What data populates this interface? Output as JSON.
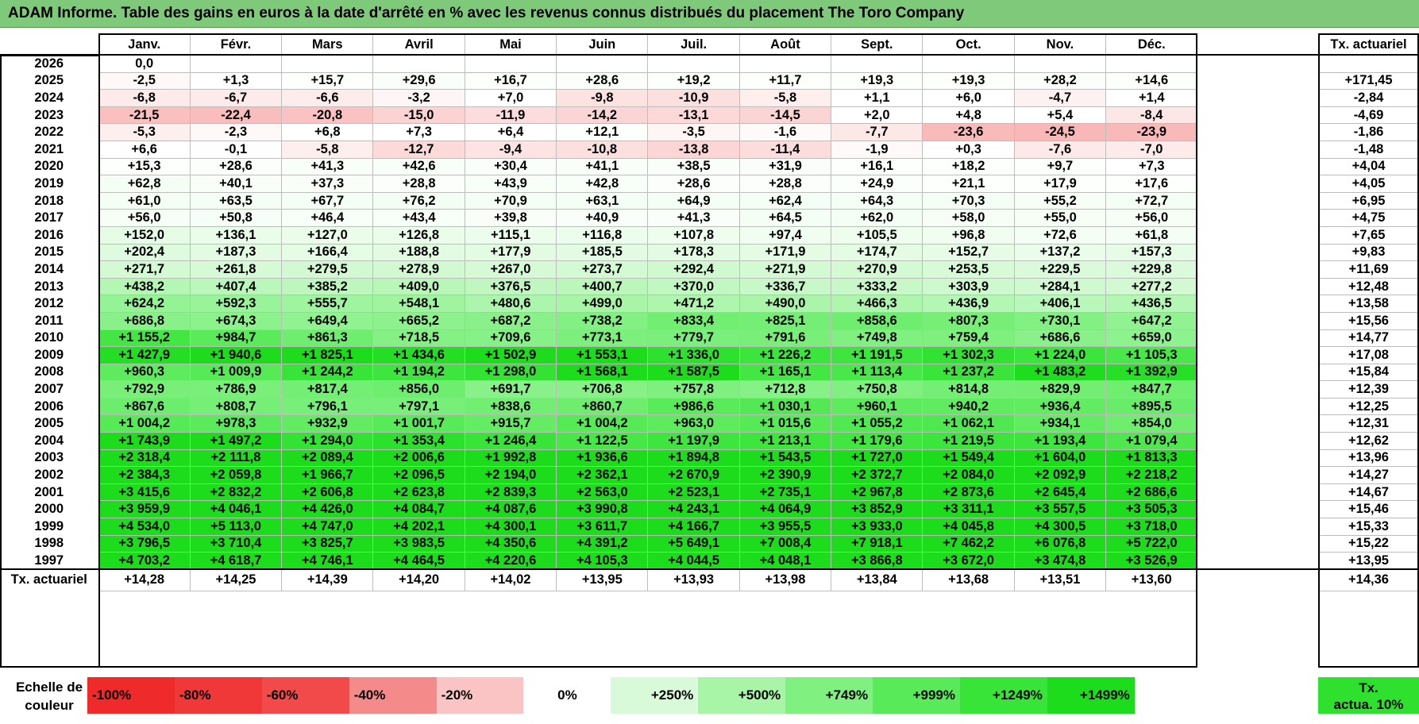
{
  "title": "ADAM Informe. Table des gains en euros à la date d'arrêté en % avec les revenus connus distribués du placement The Toro Company",
  "chart_data": {
    "type": "heatmap",
    "title": "ADAM Informe. Table des gains en euros à la date d'arrêté en % avec les revenus connus distribués du placement The Toro Company",
    "columns": [
      "Janv.",
      "Févr.",
      "Mars",
      "Avril",
      "Mai",
      "Juin",
      "Juil.",
      "Août",
      "Sept.",
      "Oct.",
      "Nov.",
      "Déc."
    ],
    "rate_column_header": "Tx. actuariel",
    "rows": [
      {
        "year": "2026",
        "values": [
          "0,0",
          "",
          "",
          "",
          "",
          "",
          "",
          "",
          "",
          "",
          "",
          ""
        ],
        "rate": ""
      },
      {
        "year": "2025",
        "values": [
          "-2,5",
          "+1,3",
          "+15,7",
          "+29,6",
          "+16,7",
          "+28,6",
          "+19,2",
          "+11,7",
          "+19,3",
          "+19,3",
          "+28,2",
          "+14,6"
        ],
        "rate": "+171,45"
      },
      {
        "year": "2024",
        "values": [
          "-6,8",
          "-6,7",
          "-6,6",
          "-3,2",
          "+7,0",
          "-9,8",
          "-10,9",
          "-5,8",
          "+1,1",
          "+6,0",
          "-4,7",
          "+1,4"
        ],
        "rate": "-2,84"
      },
      {
        "year": "2023",
        "values": [
          "-21,5",
          "-22,4",
          "-20,8",
          "-15,0",
          "-11,9",
          "-14,2",
          "-13,1",
          "-14,5",
          "+2,0",
          "+4,8",
          "+5,4",
          "-8,4"
        ],
        "rate": "-4,69"
      },
      {
        "year": "2022",
        "values": [
          "-5,3",
          "-2,3",
          "+6,8",
          "+7,3",
          "+6,4",
          "+12,1",
          "-3,5",
          "-1,6",
          "-7,7",
          "-23,6",
          "-24,5",
          "-23,9"
        ],
        "rate": "-1,86"
      },
      {
        "year": "2021",
        "values": [
          "+6,6",
          "-0,1",
          "-5,8",
          "-12,7",
          "-9,4",
          "-10,8",
          "-13,8",
          "-11,4",
          "-1,9",
          "+0,3",
          "-7,6",
          "-7,0"
        ],
        "rate": "-1,48"
      },
      {
        "year": "2020",
        "values": [
          "+15,3",
          "+28,6",
          "+41,3",
          "+42,6",
          "+30,4",
          "+41,1",
          "+38,5",
          "+31,9",
          "+16,1",
          "+18,2",
          "+9,7",
          "+7,3"
        ],
        "rate": "+4,04"
      },
      {
        "year": "2019",
        "values": [
          "+62,8",
          "+40,1",
          "+37,3",
          "+28,8",
          "+43,9",
          "+42,8",
          "+28,6",
          "+28,8",
          "+24,9",
          "+21,1",
          "+17,9",
          "+17,6"
        ],
        "rate": "+4,05"
      },
      {
        "year": "2018",
        "values": [
          "+61,0",
          "+63,5",
          "+67,7",
          "+76,2",
          "+70,9",
          "+63,1",
          "+64,9",
          "+62,4",
          "+64,3",
          "+70,3",
          "+55,2",
          "+72,7"
        ],
        "rate": "+6,95"
      },
      {
        "year": "2017",
        "values": [
          "+56,0",
          "+50,8",
          "+46,4",
          "+43,4",
          "+39,8",
          "+40,9",
          "+41,3",
          "+64,5",
          "+62,0",
          "+58,0",
          "+55,0",
          "+56,0"
        ],
        "rate": "+4,75"
      },
      {
        "year": "2016",
        "values": [
          "+152,0",
          "+136,1",
          "+127,0",
          "+126,8",
          "+115,1",
          "+116,8",
          "+107,8",
          "+97,4",
          "+105,5",
          "+96,8",
          "+72,6",
          "+61,8"
        ],
        "rate": "+7,65"
      },
      {
        "year": "2015",
        "values": [
          "+202,4",
          "+187,3",
          "+166,4",
          "+188,8",
          "+177,9",
          "+185,5",
          "+178,3",
          "+171,9",
          "+174,7",
          "+152,7",
          "+137,2",
          "+157,3"
        ],
        "rate": "+9,83"
      },
      {
        "year": "2014",
        "values": [
          "+271,7",
          "+261,8",
          "+279,5",
          "+278,9",
          "+267,0",
          "+273,7",
          "+292,4",
          "+271,9",
          "+270,9",
          "+253,5",
          "+229,5",
          "+229,8"
        ],
        "rate": "+11,69"
      },
      {
        "year": "2013",
        "values": [
          "+438,2",
          "+407,4",
          "+385,2",
          "+409,0",
          "+376,5",
          "+400,7",
          "+370,0",
          "+336,7",
          "+333,2",
          "+303,9",
          "+284,1",
          "+277,2"
        ],
        "rate": "+12,48"
      },
      {
        "year": "2012",
        "values": [
          "+624,2",
          "+592,3",
          "+555,7",
          "+548,1",
          "+480,6",
          "+499,0",
          "+471,2",
          "+490,0",
          "+466,3",
          "+436,9",
          "+406,1",
          "+436,5"
        ],
        "rate": "+13,58"
      },
      {
        "year": "2011",
        "values": [
          "+686,8",
          "+674,3",
          "+649,4",
          "+665,2",
          "+687,2",
          "+738,2",
          "+833,4",
          "+825,1",
          "+858,6",
          "+807,3",
          "+730,1",
          "+647,2"
        ],
        "rate": "+15,56"
      },
      {
        "year": "2010",
        "values": [
          "+1 155,2",
          "+984,7",
          "+861,3",
          "+718,5",
          "+709,6",
          "+773,1",
          "+779,7",
          "+791,6",
          "+749,8",
          "+759,4",
          "+686,6",
          "+659,0"
        ],
        "rate": "+14,77"
      },
      {
        "year": "2009",
        "values": [
          "+1 427,9",
          "+1 940,6",
          "+1 825,1",
          "+1 434,6",
          "+1 502,9",
          "+1 553,1",
          "+1 336,0",
          "+1 226,2",
          "+1 191,5",
          "+1 302,3",
          "+1 224,0",
          "+1 105,3"
        ],
        "rate": "+17,08"
      },
      {
        "year": "2008",
        "values": [
          "+960,3",
          "+1 009,9",
          "+1 244,2",
          "+1 194,2",
          "+1 298,0",
          "+1 568,1",
          "+1 587,5",
          "+1 165,1",
          "+1 113,4",
          "+1 237,2",
          "+1 483,2",
          "+1 392,9"
        ],
        "rate": "+15,84"
      },
      {
        "year": "2007",
        "values": [
          "+792,9",
          "+786,9",
          "+817,4",
          "+856,0",
          "+691,7",
          "+706,8",
          "+757,8",
          "+712,8",
          "+750,8",
          "+814,8",
          "+829,9",
          "+847,7"
        ],
        "rate": "+12,39"
      },
      {
        "year": "2006",
        "values": [
          "+867,6",
          "+808,7",
          "+796,1",
          "+797,1",
          "+838,6",
          "+860,7",
          "+986,6",
          "+1 030,1",
          "+960,1",
          "+940,2",
          "+936,4",
          "+895,5"
        ],
        "rate": "+12,25"
      },
      {
        "year": "2005",
        "values": [
          "+1 004,2",
          "+978,3",
          "+932,9",
          "+1 001,7",
          "+915,7",
          "+1 004,2",
          "+963,0",
          "+1 015,6",
          "+1 055,2",
          "+1 062,1",
          "+934,1",
          "+854,0"
        ],
        "rate": "+12,31"
      },
      {
        "year": "2004",
        "values": [
          "+1 743,9",
          "+1 497,2",
          "+1 294,0",
          "+1 353,4",
          "+1 246,4",
          "+1 122,5",
          "+1 197,9",
          "+1 213,1",
          "+1 179,6",
          "+1 219,5",
          "+1 193,4",
          "+1 079,4"
        ],
        "rate": "+12,62"
      },
      {
        "year": "2003",
        "values": [
          "+2 318,4",
          "+2 111,8",
          "+2 089,4",
          "+2 006,6",
          "+1 992,8",
          "+1 936,6",
          "+1 894,8",
          "+1 543,5",
          "+1 727,0",
          "+1 549,4",
          "+1 604,0",
          "+1 813,3"
        ],
        "rate": "+13,96"
      },
      {
        "year": "2002",
        "values": [
          "+2 384,3",
          "+2 059,8",
          "+1 966,7",
          "+2 096,5",
          "+2 194,0",
          "+2 362,1",
          "+2 670,9",
          "+2 390,9",
          "+2 372,7",
          "+2 084,0",
          "+2 092,9",
          "+2 218,2"
        ],
        "rate": "+14,27"
      },
      {
        "year": "2001",
        "values": [
          "+3 415,6",
          "+2 832,2",
          "+2 606,8",
          "+2 623,8",
          "+2 839,3",
          "+2 563,0",
          "+2 523,1",
          "+2 735,1",
          "+2 967,8",
          "+2 873,6",
          "+2 645,4",
          "+2 686,6"
        ],
        "rate": "+14,67"
      },
      {
        "year": "2000",
        "values": [
          "+3 959,9",
          "+4 046,1",
          "+4 426,0",
          "+4 084,7",
          "+4 087,6",
          "+3 990,8",
          "+4 243,1",
          "+4 064,9",
          "+3 852,9",
          "+3 311,1",
          "+3 557,5",
          "+3 505,3"
        ],
        "rate": "+15,46"
      },
      {
        "year": "1999",
        "values": [
          "+4 534,0",
          "+5 113,0",
          "+4 747,0",
          "+4 202,1",
          "+4 300,1",
          "+3 611,7",
          "+4 166,7",
          "+3 955,5",
          "+3 933,0",
          "+4 045,8",
          "+4 300,5",
          "+3 718,0"
        ],
        "rate": "+15,33"
      },
      {
        "year": "1998",
        "values": [
          "+3 796,5",
          "+3 710,4",
          "+3 825,7",
          "+3 983,5",
          "+4 350,6",
          "+4 391,2",
          "+5 649,1",
          "+7 008,4",
          "+7 918,1",
          "+7 462,2",
          "+6 076,8",
          "+5 722,0"
        ],
        "rate": "+15,22"
      },
      {
        "year": "1997",
        "values": [
          "+4 703,2",
          "+4 618,7",
          "+4 746,1",
          "+4 464,5",
          "+4 220,6",
          "+4 105,3",
          "+4 044,5",
          "+4 048,1",
          "+3 866,8",
          "+3 672,0",
          "+3 474,8",
          "+3 526,9"
        ],
        "rate": "+13,95"
      }
    ],
    "footer": {
      "label": "Tx. actuariel",
      "values": [
        "+14,28",
        "+14,25",
        "+14,39",
        "+14,20",
        "+14,02",
        "+13,95",
        "+13,93",
        "+13,98",
        "+13,84",
        "+13,68",
        "+13,51",
        "+13,60"
      ],
      "rate": "+14,36"
    },
    "color_scale": {
      "label_line1": "Echelle de",
      "label_line2": "couleur",
      "stops": [
        {
          "label": "-100%",
          "value": -100,
          "color": "#ee2a2a"
        },
        {
          "label": "-80%",
          "value": -80,
          "color": "#f03838"
        },
        {
          "label": "-60%",
          "value": -60,
          "color": "#f24a4a"
        },
        {
          "label": "-40%",
          "value": -40,
          "color": "#f48a8a"
        },
        {
          "label": "-20%",
          "value": -20,
          "color": "#fac4c4"
        },
        {
          "label": "0%",
          "value": 0,
          "color": "#ffffff"
        },
        {
          "label": "+250%",
          "value": 250,
          "color": "#d8fad8"
        },
        {
          "label": "+500%",
          "value": 500,
          "color": "#a8f5a8"
        },
        {
          "label": "+749%",
          "value": 749,
          "color": "#80f080"
        },
        {
          "label": "+999%",
          "value": 999,
          "color": "#58ea58"
        },
        {
          "label": "+1249%",
          "value": 1249,
          "color": "#38e438"
        },
        {
          "label": "+1499%",
          "value": 1499,
          "color": "#1cdc1c"
        }
      ],
      "rate_legend_line1": "Tx.",
      "rate_legend_line2": "actua. 10%",
      "rate_legend_color": "#2fe02f"
    }
  }
}
